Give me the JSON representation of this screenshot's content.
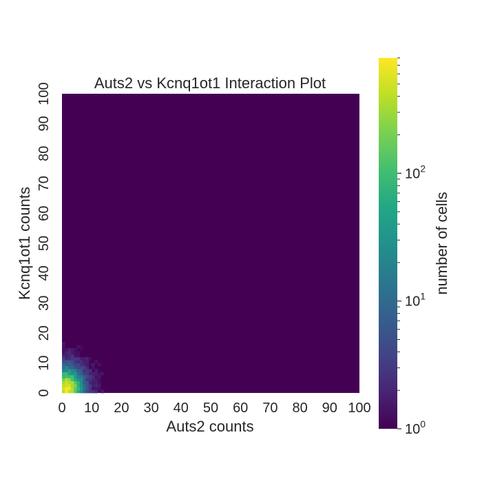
{
  "chart_data": {
    "type": "heatmap",
    "title": "Auts2 vs Kcnq1ot1 Interaction Plot",
    "xlabel": "Auts2 counts",
    "ylabel": "Kcnq1ot1 counts",
    "xlim": [
      0,
      100
    ],
    "ylim": [
      0,
      100
    ],
    "x_ticks": [
      "0",
      "10",
      "20",
      "30",
      "40",
      "50",
      "60",
      "70",
      "80",
      "90",
      "100"
    ],
    "y_ticks": [
      "0",
      "10",
      "20",
      "30",
      "40",
      "50",
      "60",
      "70",
      "80",
      "90",
      "100"
    ],
    "bin_width": 1,
    "colormap": "viridis",
    "color_scale": "log",
    "colorbar_label": "number of cells",
    "colorbar_range": [
      1,
      800
    ],
    "colorbar_ticks": [
      {
        "value": 1,
        "base": "10",
        "exp": "0"
      },
      {
        "value": 10,
        "base": "10",
        "exp": "1"
      },
      {
        "value": 100,
        "base": "10",
        "exp": "2"
      }
    ],
    "background_value": 1,
    "estimated_peak": {
      "x": 1,
      "y": 1,
      "count": 800
    },
    "nonzero_extent": {
      "x_max": 14,
      "y_max": 19
    }
  }
}
